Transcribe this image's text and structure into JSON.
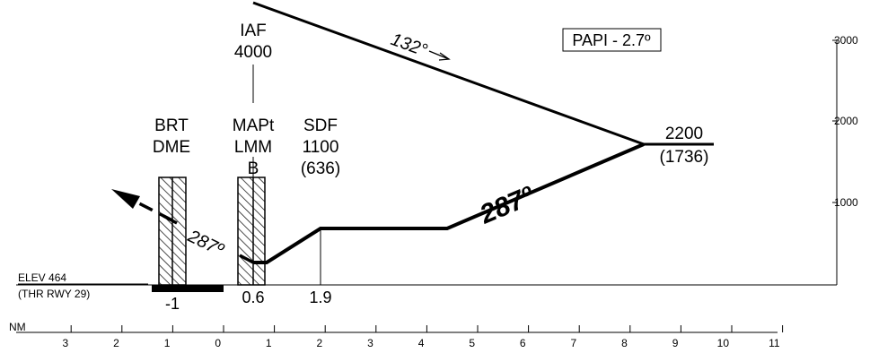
{
  "papi": "PAPI - 2.7º",
  "fixes": {
    "iaf": {
      "name": "IAF",
      "alt": "4000"
    },
    "brt": {
      "line1": "BRT",
      "line2": "DME"
    },
    "mapt": {
      "line1": "MAPt",
      "line2": "LMM",
      "line3": "B"
    },
    "sdf": {
      "line1": "SDF",
      "line2": "1100",
      "line3": "(636)"
    },
    "initial": {
      "alt": "2200",
      "hat": "(1736)"
    }
  },
  "courses": {
    "outbound": "132°",
    "inbound": "287º",
    "missed": "287º"
  },
  "elevation": {
    "line1": "ELEV  464",
    "line2": "(THR RWY 29)"
  },
  "distances": {
    "brt": "-1",
    "mapt": "0.6",
    "sdf": "1.9"
  },
  "nm_scale": {
    "label": "NM",
    "ticks": [
      "3",
      "2",
      "1",
      "0",
      "1",
      "2",
      "3",
      "4",
      "5",
      "6",
      "7",
      "8",
      "9",
      "10",
      "11"
    ]
  },
  "altitude_scale": {
    "ticks": [
      "3000",
      "2000",
      "1000"
    ]
  }
}
